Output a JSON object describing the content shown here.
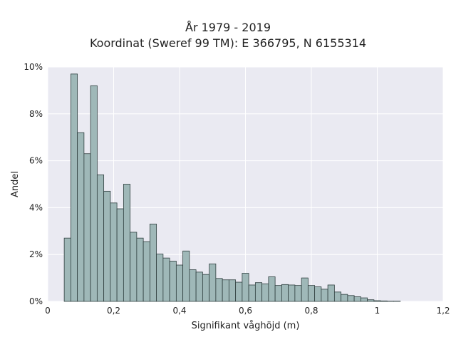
{
  "chart_data": {
    "type": "bar",
    "title": "År 1979 - 2019",
    "subtitle": "Koordinat (Sweref 99 TM): E 366795, N 6155314",
    "xlabel": "Signifikant våghöjd (m)",
    "ylabel": "Andel",
    "xlim": [
      0,
      1.2
    ],
    "ylim": [
      0,
      10
    ],
    "x_ticks": [
      "0",
      "0,2",
      "0,4",
      "0,6",
      "0,8",
      "1",
      "1,2"
    ],
    "y_ticks": [
      "0%",
      "2%",
      "4%",
      "6%",
      "8%",
      "10%"
    ],
    "grid": true,
    "bin_width": 0.02,
    "bin_start": 0.05,
    "values": [
      2.7,
      9.7,
      7.2,
      6.3,
      9.2,
      5.4,
      4.7,
      4.2,
      3.95,
      5.0,
      2.95,
      2.7,
      2.55,
      3.3,
      2.02,
      1.85,
      1.72,
      1.55,
      2.15,
      1.35,
      1.25,
      1.15,
      1.6,
      0.98,
      0.92,
      0.92,
      0.82,
      1.2,
      0.7,
      0.8,
      0.75,
      1.05,
      0.68,
      0.72,
      0.7,
      0.68,
      1.0,
      0.68,
      0.62,
      0.52,
      0.7,
      0.4,
      0.3,
      0.25,
      0.2,
      0.15,
      0.07,
      0.03,
      0.02,
      0.01,
      0.01,
      0.0,
      0.0,
      0.0,
      0.0,
      0.0
    ],
    "colors": {
      "bar_fill": "#9fb8b8",
      "bar_edge": "#2f3f3f",
      "plot_bg": "#eaeaf2",
      "grid": "#ffffff"
    }
  }
}
